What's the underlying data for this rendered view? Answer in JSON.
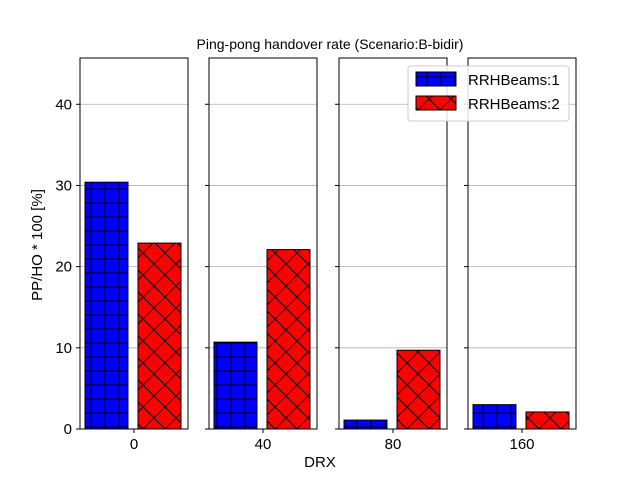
{
  "chart_data": {
    "type": "bar",
    "title": "Ping-pong handover rate (Scenario:B-bidir)",
    "xlabel": "DRX",
    "ylabel": "PP/HO * 100 [%]",
    "ylim": [
      0,
      45.7
    ],
    "yticks": [
      0,
      10,
      20,
      30,
      40
    ],
    "grid": "y",
    "legend_position": "top-right",
    "panels": [
      {
        "category": "0"
      },
      {
        "category": "40"
      },
      {
        "category": "80"
      },
      {
        "category": "160"
      }
    ],
    "series": [
      {
        "name": "RRHBeams:1",
        "color": "#0000ff",
        "hatch": "plus",
        "values": [
          30.4,
          10.7,
          1.1,
          3.0
        ]
      },
      {
        "name": "RRHBeams:2",
        "color": "#ff0000",
        "hatch": "cross",
        "values": [
          22.9,
          22.1,
          9.7,
          2.1
        ]
      }
    ]
  }
}
